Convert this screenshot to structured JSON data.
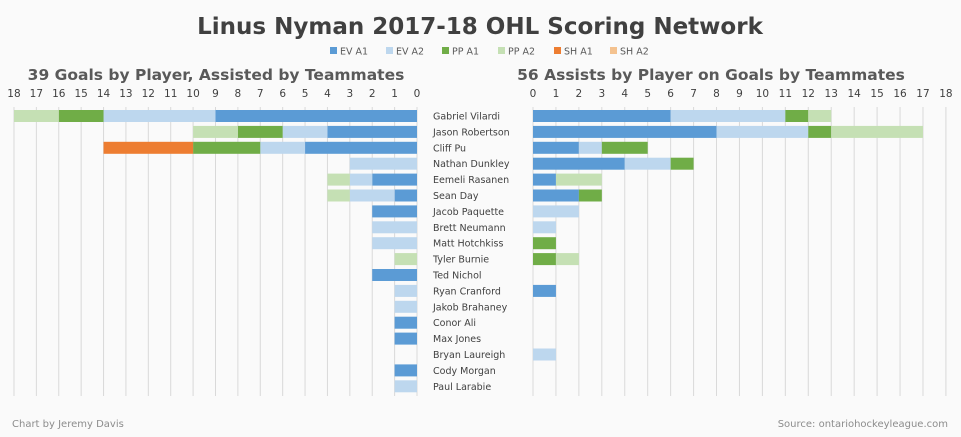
{
  "chart_data": [
    {
      "type": "bar",
      "orientation": "horizontal-stacked",
      "title": "39 Goals by Player, Assisted by Teammates",
      "direction": "right-to-left",
      "xlim": [
        0,
        18
      ],
      "ticks": [
        18,
        17,
        16,
        15,
        14,
        13,
        12,
        11,
        10,
        9,
        8,
        7,
        6,
        5,
        4,
        3,
        2,
        1,
        0
      ],
      "grid": true,
      "categories": [
        "Gabriel Vilardi",
        "Jason Robertson",
        "Cliff Pu",
        "Nathan Dunkley",
        "Eemeli Rasanen",
        "Sean Day",
        "Jacob Paquette",
        "Brett Neumann",
        "Matt Hotchkiss",
        "Tyler Burnie",
        "Ted Nichol",
        "Ryan Cranford",
        "Jakob Brahaney",
        "Conor Ali",
        "Max Jones",
        "Bryan Laureigh",
        "Cody Morgan",
        "Paul Larabie"
      ],
      "series": [
        {
          "name": "EV A1",
          "values": [
            9,
            4,
            5,
            0,
            2,
            1,
            2,
            0,
            0,
            0,
            2,
            0,
            0,
            1,
            1,
            0,
            1,
            0
          ]
        },
        {
          "name": "EV A2",
          "values": [
            5,
            2,
            2,
            3,
            1,
            2,
            0,
            2,
            2,
            0,
            0,
            1,
            1,
            0,
            0,
            0,
            0,
            1
          ]
        },
        {
          "name": "PP A1",
          "values": [
            2,
            2,
            3,
            0,
            0,
            0,
            0,
            0,
            0,
            0,
            0,
            0,
            0,
            0,
            0,
            0,
            0,
            0
          ]
        },
        {
          "name": "PP A2",
          "values": [
            2,
            2,
            0,
            0,
            1,
            1,
            0,
            0,
            0,
            1,
            0,
            0,
            0,
            0,
            0,
            0,
            0,
            0
          ]
        },
        {
          "name": "SH A1",
          "values": [
            0,
            0,
            4,
            0,
            0,
            0,
            0,
            0,
            0,
            0,
            0,
            0,
            0,
            0,
            0,
            0,
            0,
            0
          ]
        },
        {
          "name": "SH A2",
          "values": [
            0,
            0,
            0,
            0,
            0,
            0,
            0,
            0,
            0,
            0,
            0,
            0,
            0,
            0,
            0,
            0,
            0,
            0
          ]
        }
      ]
    },
    {
      "type": "bar",
      "orientation": "horizontal-stacked",
      "title": "56 Assists by Player on Goals by Teammates",
      "direction": "left-to-right",
      "xlim": [
        0,
        18
      ],
      "ticks": [
        0,
        1,
        2,
        3,
        4,
        5,
        6,
        7,
        8,
        9,
        10,
        11,
        12,
        13,
        14,
        15,
        16,
        17,
        18
      ],
      "grid": true,
      "categories": [
        "Gabriel Vilardi",
        "Jason Robertson",
        "Cliff Pu",
        "Nathan Dunkley",
        "Eemeli Rasanen",
        "Sean Day",
        "Jacob Paquette",
        "Brett Neumann",
        "Matt Hotchkiss",
        "Tyler Burnie",
        "Ted Nichol",
        "Ryan Cranford",
        "Jakob Brahaney",
        "Conor Ali",
        "Max Jones",
        "Bryan Laureigh",
        "Cody Morgan",
        "Paul Larabie"
      ],
      "series": [
        {
          "name": "EV A1",
          "values": [
            6,
            8,
            2,
            4,
            1,
            2,
            0,
            0,
            0,
            0,
            0,
            1,
            0,
            0,
            0,
            0,
            0,
            0
          ]
        },
        {
          "name": "EV A2",
          "values": [
            5,
            4,
            1,
            2,
            0,
            0,
            2,
            1,
            0,
            0,
            0,
            0,
            0,
            0,
            0,
            1,
            0,
            0
          ]
        },
        {
          "name": "PP A1",
          "values": [
            1,
            1,
            2,
            1,
            0,
            1,
            0,
            0,
            1,
            1,
            0,
            0,
            0,
            0,
            0,
            0,
            0,
            0
          ]
        },
        {
          "name": "PP A2",
          "values": [
            1,
            4,
            0,
            0,
            2,
            0,
            0,
            0,
            0,
            1,
            0,
            0,
            0,
            0,
            0,
            0,
            0,
            0
          ]
        },
        {
          "name": "SH A1",
          "values": [
            0,
            0,
            0,
            0,
            0,
            0,
            0,
            0,
            0,
            0,
            0,
            0,
            0,
            0,
            0,
            0,
            0,
            0
          ]
        },
        {
          "name": "SH A2",
          "values": [
            0,
            0,
            0,
            0,
            0,
            0,
            0,
            0,
            0,
            0,
            0,
            0,
            0,
            0,
            0,
            0,
            0,
            0
          ]
        }
      ]
    }
  ],
  "title": "Linus Nyman 2017-18 OHL Scoring Network",
  "legend": {
    "placement": "top-right",
    "items": [
      {
        "label": "EV A1",
        "color": "#5b9bd5"
      },
      {
        "label": "EV A2",
        "color": "#bdd7ee"
      },
      {
        "label": "PP A1",
        "color": "#70ad47"
      },
      {
        "label": "PP A2",
        "color": "#c5e0b4"
      },
      {
        "label": "SH A1",
        "color": "#ed7d31"
      },
      {
        "label": "SH A2",
        "color": "#f4c28f"
      }
    ]
  },
  "footer": {
    "credit": "Chart by Jeremy Davis",
    "source": "Source: ontariohockeyleague.com"
  }
}
